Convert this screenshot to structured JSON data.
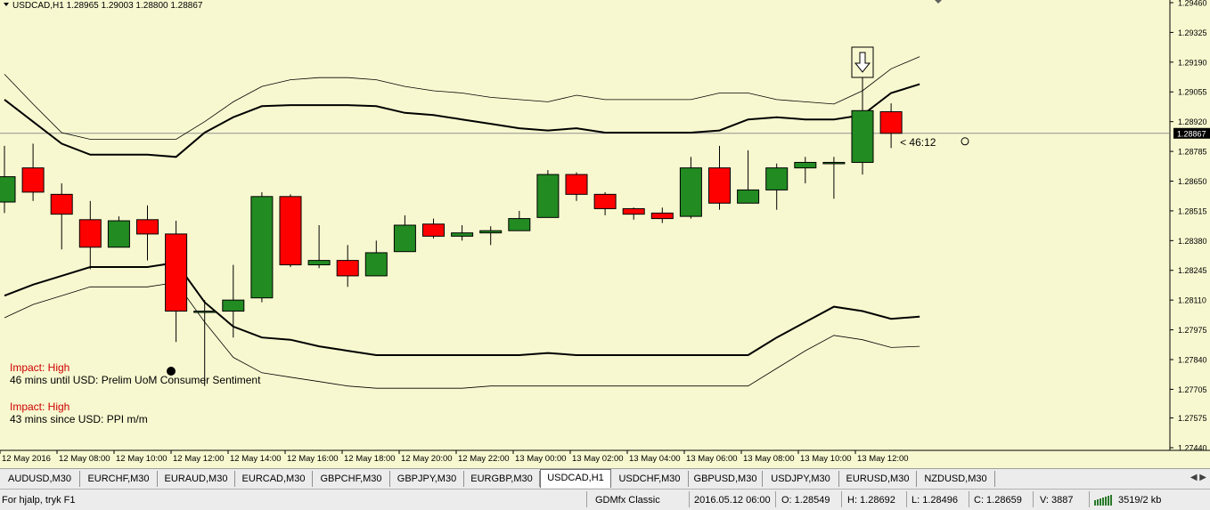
{
  "chart": {
    "header": "USDCAD,H1  1.28965 1.29003 1.28800 1.28867",
    "price_labels": [
      "1.29460",
      "1.29325",
      "1.29190",
      "1.29055",
      "1.28920",
      "1.28785",
      "1.28650",
      "1.28515",
      "1.28380",
      "1.28245",
      "1.28110",
      "1.27975",
      "1.27840",
      "1.27705",
      "1.27575",
      "1.27440"
    ],
    "current_price": "1.28867",
    "countdown": "< 46:12",
    "time_labels": [
      "12 May 2016",
      "12 May 08:00",
      "12 May 10:00",
      "12 May 12:00",
      "12 May 14:00",
      "12 May 16:00",
      "12 May 18:00",
      "12 May 20:00",
      "12 May 22:00",
      "13 May 00:00",
      "13 May 02:00",
      "13 May 04:00",
      "13 May 06:00",
      "13 May 08:00",
      "13 May 10:00",
      "13 May 12:00"
    ],
    "events": [
      {
        "impact": "Impact: High",
        "text": "46 mins until USD: Prelim UoM Consumer Sentiment"
      },
      {
        "impact": "Impact: High",
        "text": "43 mins since USD: PPI m/m"
      }
    ],
    "colors": {
      "background": "#f8f8d0",
      "bull": "#228b22",
      "bear": "#ff0000",
      "impact": "#cc0000"
    }
  },
  "chart_data": {
    "type": "candlestick",
    "symbol": "USDCAD",
    "timeframe": "H1",
    "candles": [
      {
        "o": 1.28555,
        "h": 1.2881,
        "l": 1.28505,
        "c": 1.2867
      },
      {
        "o": 1.2871,
        "h": 1.2882,
        "l": 1.2856,
        "c": 1.286
      },
      {
        "o": 1.2859,
        "h": 1.2864,
        "l": 1.2834,
        "c": 1.285
      },
      {
        "o": 1.28475,
        "h": 1.2856,
        "l": 1.2825,
        "c": 1.2835
      },
      {
        "o": 1.2835,
        "h": 1.2849,
        "l": 1.2835,
        "c": 1.2847
      },
      {
        "o": 1.28475,
        "h": 1.2854,
        "l": 1.2829,
        "c": 1.2841
      },
      {
        "o": 1.2841,
        "h": 1.2847,
        "l": 1.2792,
        "c": 1.2806
      },
      {
        "o": 1.2806,
        "h": 1.2811,
        "l": 1.2772,
        "c": 1.2806
      },
      {
        "o": 1.2806,
        "h": 1.2827,
        "l": 1.2794,
        "c": 1.2811
      },
      {
        "o": 1.2812,
        "h": 1.286,
        "l": 1.281,
        "c": 1.2858
      },
      {
        "o": 1.2858,
        "h": 1.2859,
        "l": 1.2826,
        "c": 1.2827
      },
      {
        "o": 1.2827,
        "h": 1.2845,
        "l": 1.28255,
        "c": 1.2829
      },
      {
        "o": 1.2829,
        "h": 1.2836,
        "l": 1.2817,
        "c": 1.2822
      },
      {
        "o": 1.2822,
        "h": 1.2838,
        "l": 1.2822,
        "c": 1.28325
      },
      {
        "o": 1.2833,
        "h": 1.28495,
        "l": 1.2833,
        "c": 1.2845
      },
      {
        "o": 1.28455,
        "h": 1.2848,
        "l": 1.2839,
        "c": 1.284
      },
      {
        "o": 1.284,
        "h": 1.2845,
        "l": 1.2838,
        "c": 1.28415
      },
      {
        "o": 1.28415,
        "h": 1.28445,
        "l": 1.2836,
        "c": 1.28425
      },
      {
        "o": 1.28425,
        "h": 1.28515,
        "l": 1.28425,
        "c": 1.2848
      },
      {
        "o": 1.28485,
        "h": 1.287,
        "l": 1.28485,
        "c": 1.2868
      },
      {
        "o": 1.2868,
        "h": 1.2869,
        "l": 1.2856,
        "c": 1.2859
      },
      {
        "o": 1.2859,
        "h": 1.286,
        "l": 1.28495,
        "c": 1.28525
      },
      {
        "o": 1.28525,
        "h": 1.2853,
        "l": 1.28475,
        "c": 1.285
      },
      {
        "o": 1.28505,
        "h": 1.2853,
        "l": 1.2846,
        "c": 1.2848
      },
      {
        "o": 1.2849,
        "h": 1.2876,
        "l": 1.2848,
        "c": 1.2871
      },
      {
        "o": 1.2871,
        "h": 1.2881,
        "l": 1.2852,
        "c": 1.2855
      },
      {
        "o": 1.2855,
        "h": 1.2879,
        "l": 1.2855,
        "c": 1.2861
      },
      {
        "o": 1.2861,
        "h": 1.2873,
        "l": 1.2852,
        "c": 1.2871
      },
      {
        "o": 1.2871,
        "h": 1.2876,
        "l": 1.2864,
        "c": 1.28735
      },
      {
        "o": 1.28735,
        "h": 1.2876,
        "l": 1.2857,
        "c": 1.28735
      },
      {
        "o": 1.28735,
        "h": 1.2917,
        "l": 1.2868,
        "c": 1.2897
      },
      {
        "o": 1.28965,
        "h": 1.29003,
        "l": 1.288,
        "c": 1.28867
      }
    ],
    "envelope_upper_outer": [
      1.29135,
      1.29,
      1.2887,
      1.2884,
      1.2884,
      1.2884,
      1.2884,
      1.2892,
      1.2901,
      1.2908,
      1.2911,
      1.2912,
      1.2912,
      1.2911,
      1.2908,
      1.2906,
      1.2905,
      1.2903,
      1.2902,
      1.2901,
      1.2904,
      1.2902,
      1.2902,
      1.2902,
      1.2902,
      1.2905,
      1.2905,
      1.2902,
      1.2901,
      1.29,
      1.2906,
      1.2916,
      1.29215
    ],
    "envelope_upper_inner": [
      1.2902,
      1.2892,
      1.2882,
      1.2877,
      1.2877,
      1.2877,
      1.2876,
      1.2887,
      1.2894,
      1.2899,
      1.28995,
      1.28995,
      1.28995,
      1.2899,
      1.2896,
      1.2895,
      1.2893,
      1.2891,
      1.2889,
      1.2888,
      1.2889,
      1.2887,
      1.2887,
      1.2887,
      1.2887,
      1.2888,
      1.2893,
      1.2894,
      1.2893,
      1.2893,
      1.2895,
      1.2905,
      1.2909
    ],
    "envelope_lower_inner": [
      1.2813,
      1.2818,
      1.2822,
      1.2826,
      1.2826,
      1.2826,
      1.2828,
      1.281,
      1.2799,
      1.2794,
      1.2793,
      1.279,
      1.2788,
      1.2786,
      1.2786,
      1.2786,
      1.2786,
      1.2786,
      1.2786,
      1.2787,
      1.2786,
      1.2786,
      1.2786,
      1.2786,
      1.2786,
      1.2786,
      1.2786,
      1.2794,
      1.2801,
      1.2808,
      1.2806,
      1.28025,
      1.28035
    ],
    "envelope_lower_outer": [
      1.2803,
      1.2809,
      1.2813,
      1.2817,
      1.2817,
      1.2817,
      1.2819,
      1.2801,
      1.2785,
      1.2778,
      1.2776,
      1.2774,
      1.2772,
      1.2771,
      1.2771,
      1.2771,
      1.2771,
      1.2772,
      1.2772,
      1.2772,
      1.2772,
      1.2772,
      1.2772,
      1.2772,
      1.2772,
      1.2772,
      1.2772,
      1.278,
      1.2788,
      1.2795,
      1.2793,
      1.27895,
      1.279
    ],
    "price_range": [
      1.2744,
      1.2946
    ],
    "current_price": 1.28867
  },
  "tabs": [
    {
      "label": "AUDUSD,M30",
      "active": false
    },
    {
      "label": "EURCHF,M30",
      "active": false
    },
    {
      "label": "EURAUD,M30",
      "active": false
    },
    {
      "label": "EURCAD,M30",
      "active": false
    },
    {
      "label": "GBPCHF,M30",
      "active": false
    },
    {
      "label": "GBPJPY,M30",
      "active": false
    },
    {
      "label": "EURGBP,M30",
      "active": false
    },
    {
      "label": "USDCAD,H1",
      "active": true
    },
    {
      "label": "USDCHF,M30",
      "active": false
    },
    {
      "label": "GBPUSD,M30",
      "active": false
    },
    {
      "label": "USDJPY,M30",
      "active": false
    },
    {
      "label": "EURUSD,M30",
      "active": false
    },
    {
      "label": "NZDUSD,M30",
      "active": false
    }
  ],
  "status": {
    "help": "For hjalp, tryk F1",
    "profile": "GDMfx Classic",
    "datetime": "2016.05.12 06:00",
    "open": "O: 1.28549",
    "high": "H: 1.28692",
    "low": "L: 1.28496",
    "close": "C: 1.28659",
    "volume": "V: 3887",
    "traffic": "3519/2 kb"
  }
}
